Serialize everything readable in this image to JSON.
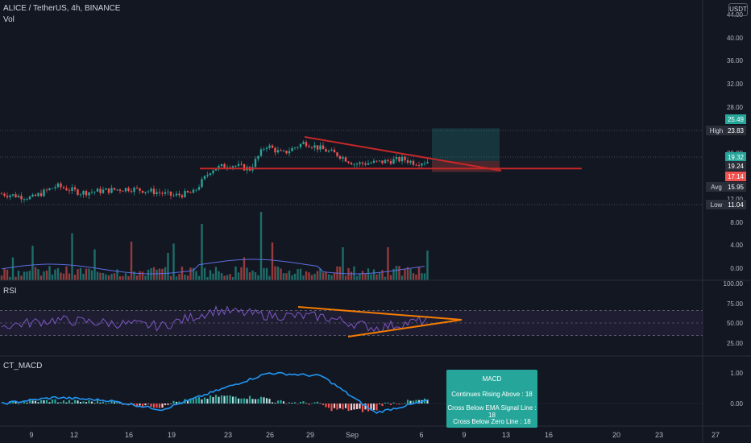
{
  "header": {
    "symbol": "ALICE / TetherUS, 4h, BINANCE",
    "volume_label": "Vol",
    "currency": "USDT"
  },
  "price_axis": {
    "ticks": [
      "44.00",
      "40.00",
      "36.00",
      "32.00",
      "28.00",
      "20.00",
      "12.00"
    ]
  },
  "volume_axis": {
    "ticks": [
      "8.00",
      "4.00",
      "0.00"
    ]
  },
  "rsi_axis": {
    "ticks": [
      "100.00",
      "75.00",
      "50.00",
      "25.00"
    ]
  },
  "macd_axis": {
    "ticks": [
      "1.00",
      "0.00"
    ]
  },
  "price_labels": [
    {
      "tag": "",
      "value": "25.49",
      "color": "#26a69a",
      "price": 25.49
    },
    {
      "tag": "High",
      "value": "23.83",
      "color": "#2a2e39",
      "price": 23.83
    },
    {
      "tag": "",
      "value": "19.32",
      "color": "#26a69a",
      "price": 19.32
    },
    {
      "tag": "",
      "value": "19.24",
      "color": "#2a2e39",
      "price": 19.24
    },
    {
      "tag": "",
      "value": "17.14",
      "color": "#ef5350",
      "price": 17.14
    },
    {
      "tag": "Avg",
      "value": "15.95",
      "color": "#2a2e39",
      "price": 15.95
    },
    {
      "tag": "Low",
      "value": "11.04",
      "color": "#2a2e39",
      "price": 11.04
    }
  ],
  "time_axis": {
    "labels": [
      "9",
      "12",
      "16",
      "19",
      "23",
      "26",
      "29",
      "Sep",
      "6",
      "9",
      "13",
      "16",
      "20",
      "23",
      "27"
    ]
  },
  "indicators": {
    "rsi_label": "RSI",
    "macd_label": "CT_MACD"
  },
  "macd_popup": {
    "title": "MACD",
    "line1": "Continues Rising Above : 18",
    "line2": "Cross Below EMA Signal Line : 18",
    "line3": "Cross Below Zero Line : 18"
  },
  "colors": {
    "background": "#131722",
    "up": "#26a69a",
    "down": "#ef5350",
    "trendline": "#c62828",
    "rsi_line": "#7e57c2",
    "rsi_trend": "#f57c00",
    "macd_line": "#2196f3",
    "signal_line": "#f23645"
  },
  "chart_data": [
    {
      "type": "candlestick",
      "title": "ALICE / TetherUS, 4h, BINANCE",
      "x": [
        "9",
        "12",
        "16",
        "19",
        "23",
        "26",
        "29",
        "Sep",
        "6"
      ],
      "close_approx": [
        13.0,
        13.2,
        13.5,
        12.6,
        17.5,
        22.5,
        21.0,
        18.5,
        19.2
      ],
      "ylim": [
        11,
        44
      ],
      "markers": {
        "high": 23.83,
        "avg": 15.95,
        "low": 11.04,
        "last": 19.24
      }
    },
    {
      "type": "bar",
      "title": "Vol",
      "ylim": [
        0,
        8
      ]
    },
    {
      "type": "line",
      "title": "RSI",
      "x": [
        "9",
        "12",
        "16",
        "19",
        "23",
        "26",
        "29",
        "Sep",
        "6"
      ],
      "values": [
        45,
        55,
        50,
        45,
        70,
        62,
        60,
        42,
        55
      ],
      "ylim": [
        25,
        100
      ]
    },
    {
      "type": "line",
      "title": "CT_MACD",
      "ylim": [
        -0.5,
        1.5
      ],
      "series": [
        {
          "values": [
            0.0,
            0.2,
            0.1,
            -0.2,
            0.4,
            1.0,
            0.9,
            -0.3,
            0.1
          ]
        },
        {
          "values": [
            0.0,
            0.15,
            0.05,
            -0.15,
            0.3,
            0.95,
            0.9,
            -0.25,
            0.05
          ]
        }
      ]
    }
  ]
}
